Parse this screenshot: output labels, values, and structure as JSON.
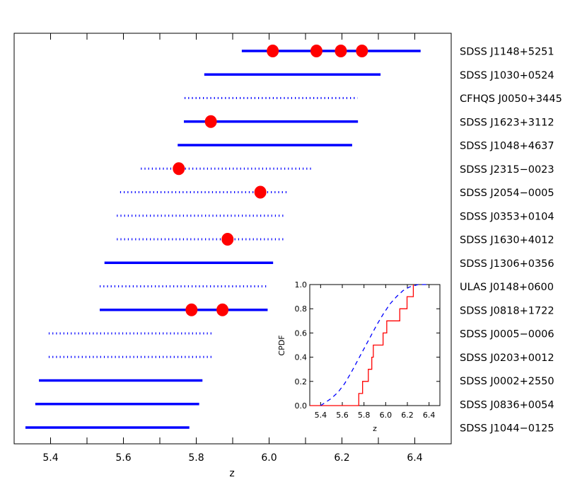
{
  "chart_data": [
    {
      "type": "range",
      "xlabel": "z",
      "xlim": [
        5.3,
        6.5
      ],
      "xticks": [
        "5.4",
        "5.6",
        "5.8",
        "6.0",
        "6.2",
        "6.4"
      ],
      "colors": {
        "range": "#0000ff",
        "marker": "#ff0000"
      },
      "rows": [
        {
          "label": "SDSS J1148+5251",
          "range": [
            5.925,
            6.416
          ],
          "style": "solid",
          "points": [
            6.01,
            6.13,
            6.197,
            6.255
          ]
        },
        {
          "label": "SDSS J1030+0524",
          "range": [
            5.822,
            6.306
          ],
          "style": "solid",
          "points": []
        },
        {
          "label": "CFHQS J0050+3445",
          "range": [
            5.768,
            6.243
          ],
          "style": "dotted",
          "points": []
        },
        {
          "label": "SDSS J1623+3112",
          "range": [
            5.766,
            6.244
          ],
          "style": "solid",
          "points": [
            5.84
          ]
        },
        {
          "label": "SDSS J1048+4637",
          "range": [
            5.749,
            6.228
          ],
          "style": "solid",
          "points": []
        },
        {
          "label": "SDSS J2315−0023",
          "range": [
            5.648,
            6.117
          ],
          "style": "dotted",
          "points": [
            5.752
          ]
        },
        {
          "label": "SDSS J2054−0005",
          "range": [
            5.591,
            6.055
          ],
          "style": "dotted",
          "points": [
            5.976
          ]
        },
        {
          "label": "SDSS J0353+0104",
          "range": [
            5.582,
            6.046
          ],
          "style": "dotted",
          "points": []
        },
        {
          "label": "SDSS J1630+4012",
          "range": [
            5.582,
            6.046
          ],
          "style": "dotted",
          "points": [
            5.886
          ]
        },
        {
          "label": "SDSS J1306+0356",
          "range": [
            5.548,
            6.011
          ],
          "style": "solid",
          "points": []
        },
        {
          "label": "ULAS J0148+0600",
          "range": [
            5.535,
            5.998
          ],
          "style": "dotted",
          "points": []
        },
        {
          "label": "SDSS J0818+1722",
          "range": [
            5.535,
            5.996
          ],
          "style": "solid",
          "points": [
            5.787,
            5.872
          ]
        },
        {
          "label": "SDSS J0005−0006",
          "range": [
            5.395,
            5.849
          ],
          "style": "dotted",
          "points": []
        },
        {
          "label": "SDSS J0203+0012",
          "range": [
            5.395,
            5.849
          ],
          "style": "dotted",
          "points": []
        },
        {
          "label": "SDSS J0002+2550",
          "range": [
            5.368,
            5.817
          ],
          "style": "solid",
          "points": []
        },
        {
          "label": "SDSS J0836+0054",
          "range": [
            5.358,
            5.808
          ],
          "style": "solid",
          "points": []
        },
        {
          "label": "SDSS J1044−0125",
          "range": [
            5.331,
            5.781
          ],
          "style": "solid",
          "points": []
        }
      ]
    },
    {
      "type": "line",
      "xlabel": "z",
      "ylabel": "CPDF",
      "xlim": [
        5.3,
        6.5
      ],
      "ylim": [
        0,
        1
      ],
      "xticks": [
        "5.4",
        "5.6",
        "5.8",
        "6.0",
        "6.2",
        "6.4"
      ],
      "yticks": [
        "0.0",
        "0.2",
        "0.4",
        "0.6",
        "0.8",
        "1.0"
      ],
      "series": [
        {
          "style": "step",
          "color": "#ff0000",
          "x": [
            5.3,
            5.752,
            5.787,
            5.84,
            5.872,
            5.886,
            5.976,
            6.01,
            6.13,
            6.197,
            6.255
          ],
          "y": [
            0.0,
            0.1,
            0.2,
            0.3,
            0.4,
            0.5,
            0.6,
            0.7,
            0.8,
            0.9,
            1.0
          ]
        },
        {
          "style": "dashed",
          "color": "#0000ff",
          "x": [
            5.4,
            5.5,
            5.56,
            5.62,
            5.68,
            5.74,
            5.8,
            5.86,
            5.92,
            5.98,
            6.04,
            6.1,
            6.16,
            6.22,
            6.3,
            6.4
          ],
          "y": [
            0.0,
            0.06,
            0.11,
            0.18,
            0.27,
            0.37,
            0.47,
            0.57,
            0.67,
            0.76,
            0.84,
            0.9,
            0.95,
            0.98,
            1.0,
            1.0
          ]
        }
      ]
    }
  ]
}
